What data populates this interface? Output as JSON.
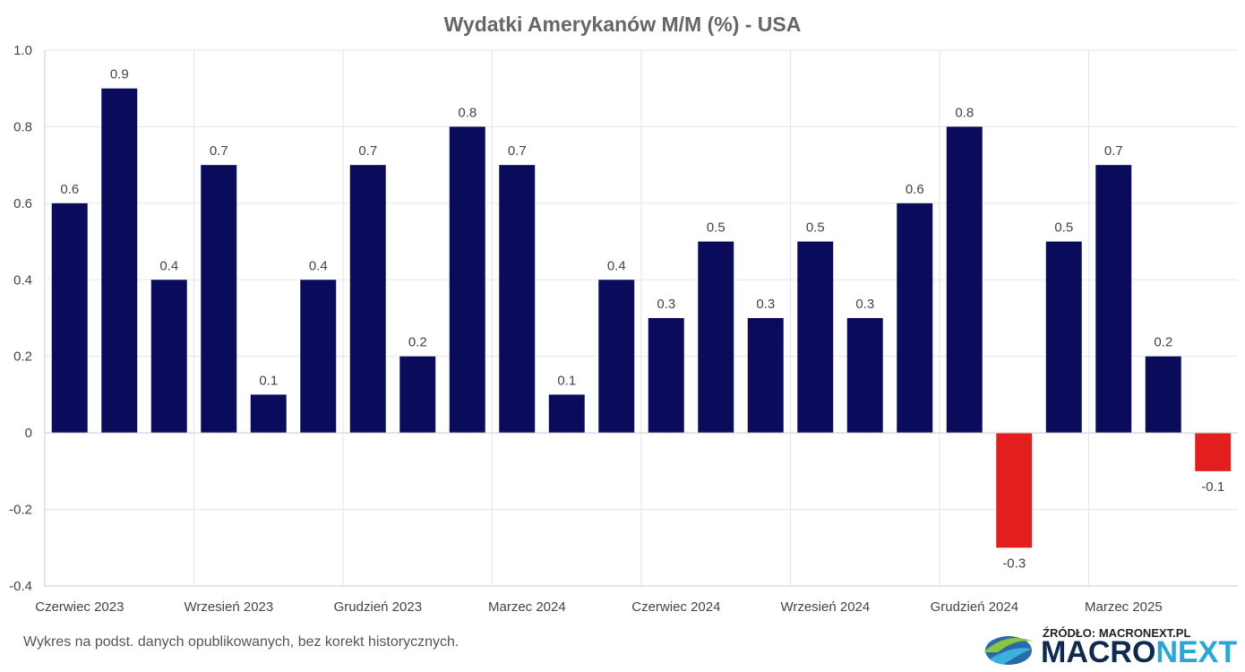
{
  "footnote": "Wykres na podst. danych opublikowanych, bez korekt historycznych.",
  "source_label": "ŹRÓDŁO: MACRONEXT.PL",
  "brand": {
    "part1": "MACRO",
    "part2": "NEXT"
  },
  "chart_data": {
    "type": "bar",
    "title": "Wydatki Amerykanów M/M (%) - USA",
    "xlabel": "",
    "ylabel": "",
    "ylim": [
      -0.4,
      1.0
    ],
    "yticks": [
      1.0,
      0.8,
      0.6,
      0.4,
      0.2,
      0,
      -0.2,
      -0.4
    ],
    "ytick_labels": [
      "1.0",
      "0.8",
      "0.6",
      "0.4",
      "0.2",
      "0",
      "-0.2",
      "-0.4"
    ],
    "categories": [
      "2023-06",
      "2023-07",
      "2023-08",
      "2023-09",
      "2023-10",
      "2023-11",
      "2023-12",
      "2024-01",
      "2024-02",
      "2024-03",
      "2024-04",
      "2024-05",
      "2024-06",
      "2024-07",
      "2024-08",
      "2024-09",
      "2024-10",
      "2024-11",
      "2024-12",
      "2025-01",
      "2025-02",
      "2025-03",
      "2025-04",
      "2025-05"
    ],
    "values": [
      0.6,
      0.9,
      0.4,
      0.7,
      0.1,
      0.4,
      0.7,
      0.2,
      0.8,
      0.7,
      0.1,
      0.4,
      0.3,
      0.5,
      0.3,
      0.5,
      0.3,
      0.6,
      0.8,
      -0.3,
      0.5,
      0.7,
      0.2,
      -0.1
    ],
    "value_labels": [
      "0.6",
      "0.9",
      "0.4",
      "0.7",
      "0.1",
      "0.4",
      "0.7",
      "0.2",
      "0.8",
      "0.7",
      "0.1",
      "0.4",
      "0.3",
      "0.5",
      "0.3",
      "0.5",
      "0.3",
      "0.6",
      "0.8",
      "-0.3",
      "0.5",
      "0.7",
      "0.2",
      "-0.1"
    ],
    "x_tick_labels": [
      {
        "index": 0,
        "label": "Czerwiec 2023"
      },
      {
        "index": 3,
        "label": "Wrzesień 2023"
      },
      {
        "index": 6,
        "label": "Grudzień 2023"
      },
      {
        "index": 9,
        "label": "Marzec 2024"
      },
      {
        "index": 12,
        "label": "Czerwiec 2024"
      },
      {
        "index": 15,
        "label": "Wrzesień 2024"
      },
      {
        "index": 18,
        "label": "Grudzień 2024"
      },
      {
        "index": 21,
        "label": "Marzec 2025"
      }
    ],
    "colors": {
      "positive": "#0b0b5c",
      "negative": "#e31e1e",
      "grid": "#e6e6e6",
      "axis": "#cccccc"
    },
    "grid": true,
    "legend": "none"
  }
}
